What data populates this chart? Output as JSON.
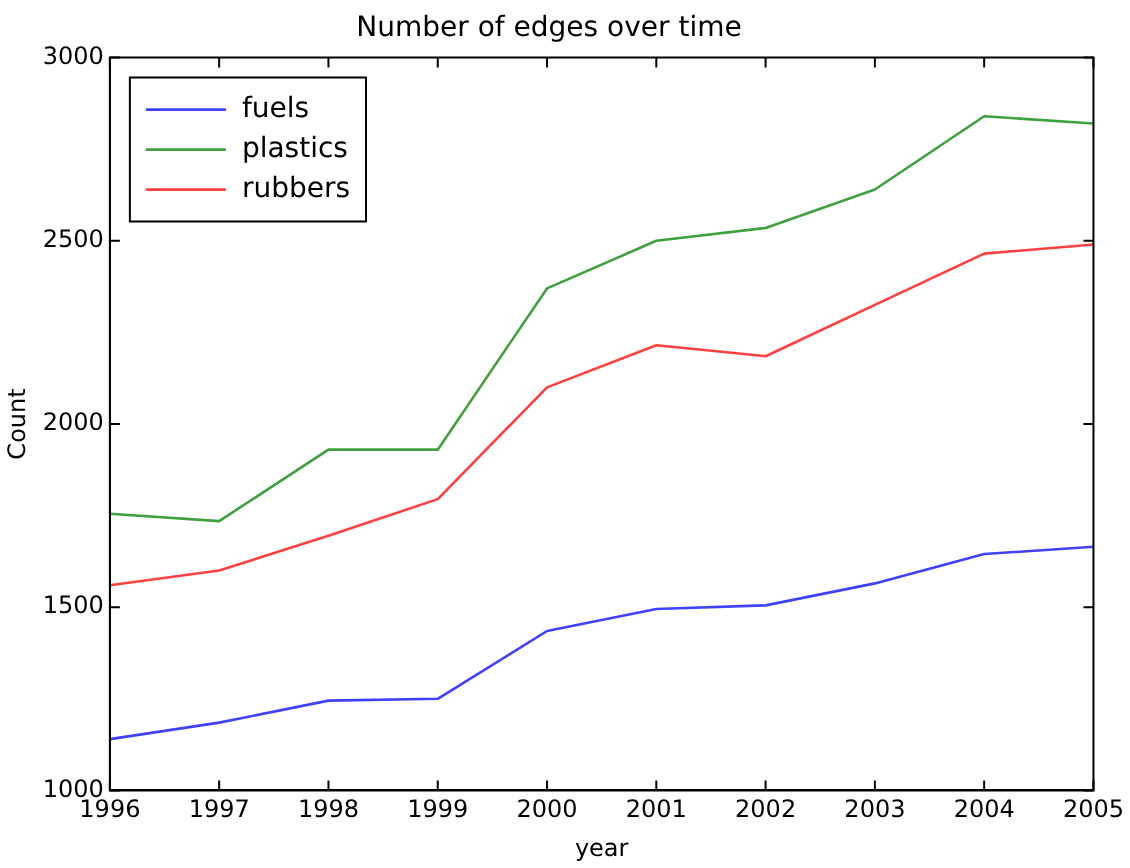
{
  "chart_data": {
    "type": "line",
    "title": "Number of edges over time",
    "xlabel": "year",
    "ylabel": "Count",
    "x": [
      1996,
      1997,
      1998,
      1999,
      2000,
      2001,
      2002,
      2003,
      2004,
      2005
    ],
    "series": [
      {
        "name": "fuels",
        "color": "#4040ff",
        "values": [
          1140,
          1185,
          1245,
          1250,
          1435,
          1495,
          1505,
          1565,
          1645,
          1665
        ]
      },
      {
        "name": "plastics",
        "color": "#40a040",
        "values": [
          1755,
          1735,
          1930,
          1930,
          2370,
          2500,
          2535,
          2640,
          2840,
          2820
        ]
      },
      {
        "name": "rubbers",
        "color": "#ff4040",
        "values": [
          1560,
          1600,
          1695,
          1795,
          2100,
          2215,
          2185,
          2325,
          2465,
          2490
        ]
      }
    ],
    "xlim": [
      1996,
      2005
    ],
    "xticks": [
      1996,
      1997,
      1998,
      1999,
      2000,
      2001,
      2002,
      2003,
      2004,
      2005
    ],
    "ylim": [
      1000,
      3000
    ],
    "yticks": [
      1000,
      1500,
      2000,
      2500,
      3000
    ],
    "grid": false,
    "legend": "top left",
    "marker": "none",
    "line_style": "solid"
  }
}
